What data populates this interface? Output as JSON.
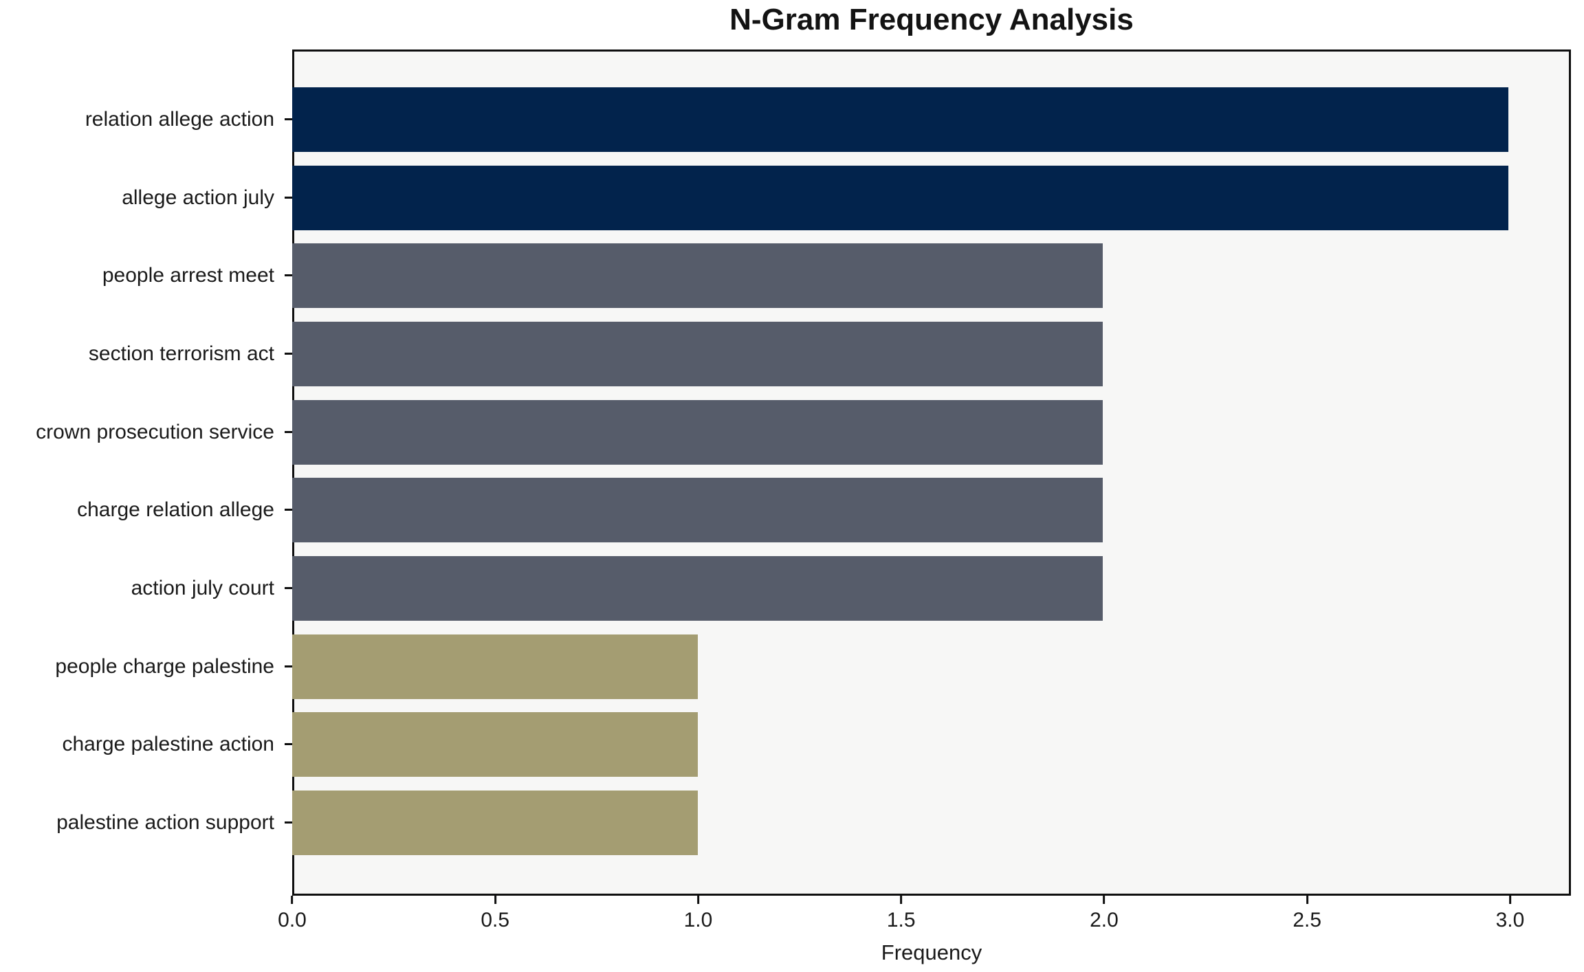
{
  "chart_data": {
    "type": "bar",
    "orientation": "horizontal",
    "title": "N-Gram Frequency Analysis",
    "xlabel": "Frequency",
    "ylabel": "",
    "categories": [
      "relation allege action",
      "allege action july",
      "people arrest meet",
      "section terrorism act",
      "crown prosecution service",
      "charge relation allege",
      "action july court",
      "people charge palestine",
      "charge palestine action",
      "palestine action support"
    ],
    "values": [
      3,
      3,
      2,
      2,
      2,
      2,
      2,
      1,
      1,
      1
    ],
    "bar_colors": [
      "#02234c",
      "#02234c",
      "#565c6a",
      "#565c6a",
      "#565c6a",
      "#565c6a",
      "#565c6a",
      "#a49d72",
      "#a49d72",
      "#a49d72"
    ],
    "xlim": [
      0,
      3.15
    ],
    "xticks": [
      0.0,
      0.5,
      1.0,
      1.5,
      2.0,
      2.5,
      3.0
    ],
    "xtick_labels": [
      "0.0",
      "0.5",
      "1.0",
      "1.5",
      "2.0",
      "2.5",
      "3.0"
    ],
    "grid": false,
    "legend": "none",
    "plot_background": "#f7f7f6",
    "figure_background": "#ffffff",
    "spine_color": "#0f0f0f"
  }
}
